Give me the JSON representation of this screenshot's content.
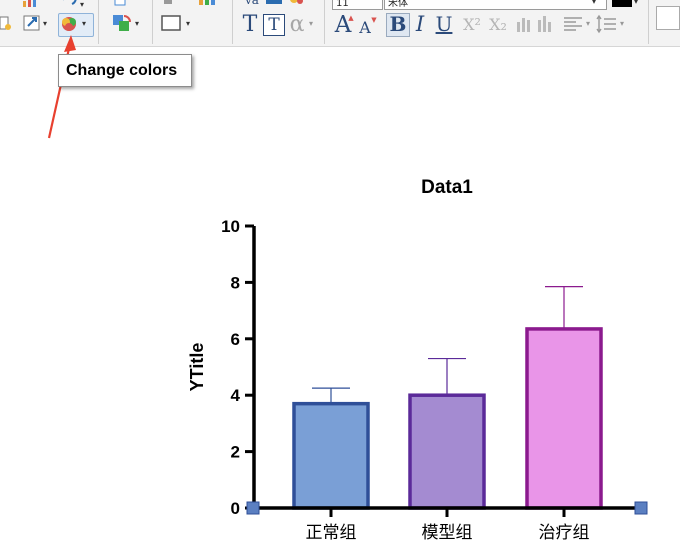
{
  "toolbar": {
    "font_size_value": "11",
    "font_name_value": "宋体",
    "text_buttons": {
      "bold": "B",
      "italic": "I",
      "underline": "U",
      "superscript": "X²",
      "subscript": "X₂",
      "alpha": "α",
      "text_t": "T",
      "text_boxed_t": "T",
      "grow_a": "A",
      "shrink_a": "A"
    },
    "colors": {
      "toolbar_bg": "#f3f3f3",
      "separator": "#cfcfcf"
    }
  },
  "tooltip": {
    "text": "Change colors"
  },
  "annotation": {
    "arrow_color": "#e8402f"
  },
  "chart_data": {
    "type": "bar",
    "title": "Data1",
    "ylabel": "YTitle",
    "xlabel": "",
    "categories": [
      "正常组",
      "模型组",
      "治疗组"
    ],
    "values": [
      3.7,
      4.0,
      6.35
    ],
    "errors": [
      0.55,
      1.3,
      1.5
    ],
    "fill_colors": [
      "#7a9fd6",
      "#a48bd1",
      "#e995e8"
    ],
    "edge_colors": [
      "#2f4f98",
      "#5b2a99",
      "#8b1a8e"
    ],
    "ylim": [
      0,
      10
    ],
    "yticks": [
      "0",
      "2",
      "4",
      "6",
      "8",
      "10"
    ],
    "grid": false,
    "legend": "none"
  }
}
